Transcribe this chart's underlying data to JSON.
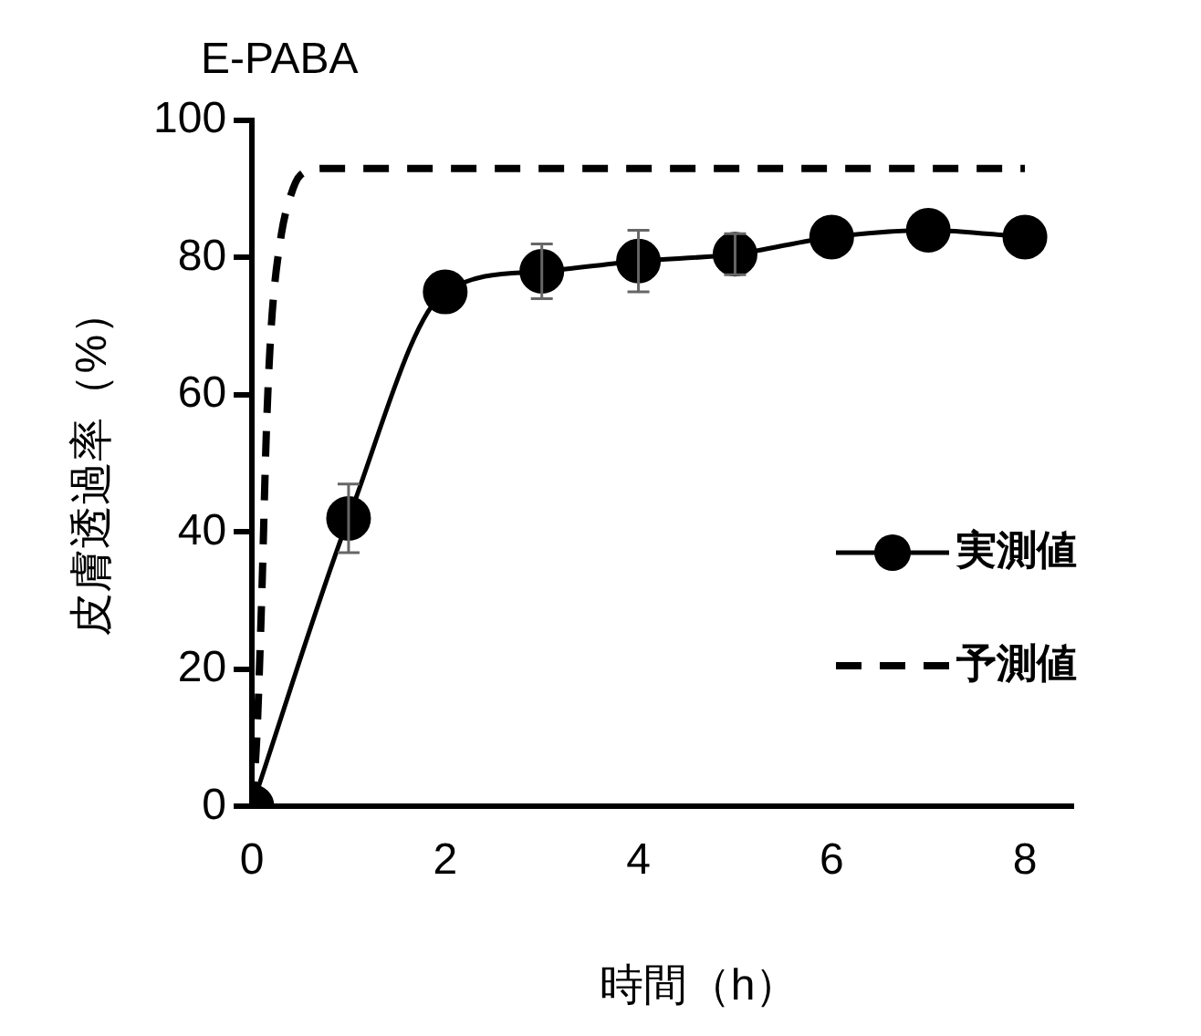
{
  "chart_data": {
    "type": "line",
    "title": "E-PABA",
    "xlabel": "時間（h）",
    "ylabel": "皮膚透過率（%）",
    "xlim": [
      0,
      8.5
    ],
    "xticks": [
      0,
      2,
      4,
      6,
      8
    ],
    "ylim": [
      0,
      100
    ],
    "yticks": [
      0,
      20,
      40,
      60,
      80,
      100
    ],
    "grid": false,
    "legend": "right",
    "series": [
      {
        "name": "実測値",
        "color": "#000000",
        "marker": "circle",
        "line_style": "solid",
        "x": [
          0,
          1,
          2,
          3,
          4,
          5,
          6,
          7,
          8
        ],
        "values": [
          0,
          42,
          75,
          78,
          79.5,
          80.5,
          83,
          84,
          83
        ],
        "errors": [
          null,
          5,
          null,
          4,
          4.5,
          3,
          null,
          null,
          null
        ]
      },
      {
        "name": "予測値",
        "color": "#000000",
        "marker": "none",
        "line_style": "dashed",
        "x": [
          0,
          0.05,
          0.1,
          0.15,
          0.2,
          0.3,
          0.4,
          0.5,
          0.75,
          1,
          8
        ],
        "values": [
          0,
          10,
          30,
          55,
          70,
          83,
          89,
          92,
          93,
          93,
          93
        ]
      }
    ]
  }
}
